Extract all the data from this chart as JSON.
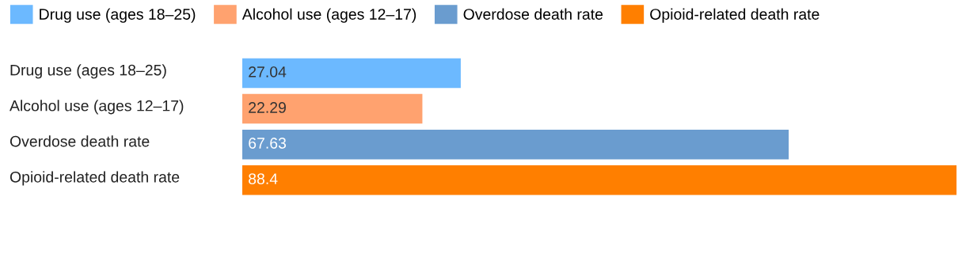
{
  "chart_data": {
    "type": "bar",
    "orientation": "horizontal",
    "data_labels": true,
    "legend": "top",
    "categories": [
      "Drug use (ages 18–25)",
      "Alcohol use (ages 12–17)",
      "Overdose death rate",
      "Opioid-related death rate"
    ],
    "series": [
      {
        "name": "Drug use (ages 18–25)",
        "color": "#6cb9ff",
        "values": [
          27.04,
          null,
          null,
          null
        ]
      },
      {
        "name": "Alcohol use (ages 12–17)",
        "color": "#ffa26f",
        "values": [
          null,
          22.29,
          null,
          null
        ]
      },
      {
        "name": "Overdose death rate",
        "color": "#6a9ccf",
        "values": [
          null,
          null,
          67.63,
          null
        ]
      },
      {
        "name": "Opioid-related death rate",
        "color": "#ff7f00",
        "values": [
          null,
          null,
          null,
          88.4
        ]
      }
    ]
  }
}
